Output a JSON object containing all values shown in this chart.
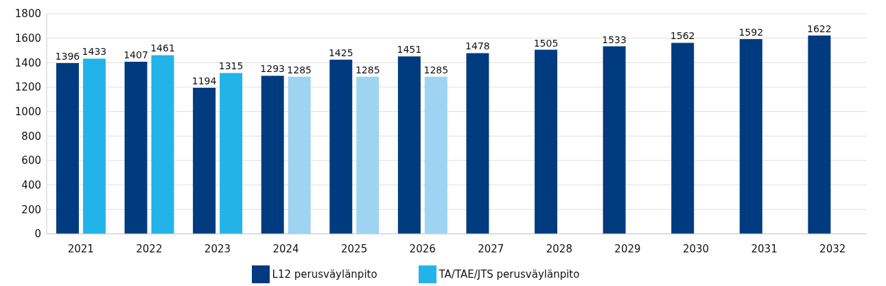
{
  "chart_data": {
    "type": "bar",
    "categories": [
      "2021",
      "2022",
      "2023",
      "2024",
      "2025",
      "2026",
      "2027",
      "2028",
      "2029",
      "2030",
      "2031",
      "2032"
    ],
    "series": [
      {
        "name": "L12 perusväylänpito",
        "color": "#003b80",
        "values": [
          1396,
          1407,
          1194,
          1293,
          1425,
          1451,
          1478,
          1505,
          1533,
          1562,
          1592,
          1622
        ]
      },
      {
        "name": "TA/TAE/JTS perusväylänpito",
        "color": "#22b4e8",
        "colors": [
          "#22b4e8",
          "#22b4e8",
          "#22b4e8",
          "#9fd3f2",
          "#9fd3f2",
          "#9fd3f2",
          null,
          null,
          null,
          null,
          null,
          null
        ],
        "values": [
          1433,
          1461,
          1315,
          1285,
          1285,
          1285,
          null,
          null,
          null,
          null,
          null,
          null
        ]
      }
    ],
    "ylim": [
      0,
      1800
    ],
    "yticks": [
      0,
      200,
      400,
      600,
      800,
      1000,
      1200,
      1400,
      1600,
      1800
    ],
    "grid": "y",
    "data_labels": true,
    "legend": "bottom"
  }
}
